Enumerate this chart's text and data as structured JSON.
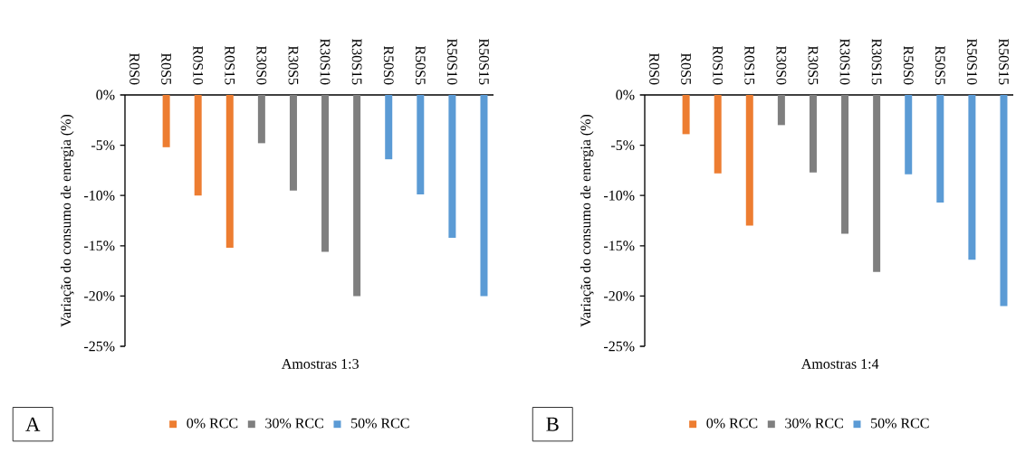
{
  "chart_data": [
    {
      "type": "bar",
      "categories": [
        "R0S0",
        "R0S5",
        "R0S10",
        "R0S15",
        "R30S0",
        "R30S5",
        "R30S10",
        "R30S15",
        "R50S0",
        "R50S5",
        "R50S10",
        "R50S15"
      ],
      "series": [
        {
          "name": "0% RCC",
          "color": "#ed7d31",
          "values": [
            0,
            -5.2,
            -10,
            -15.2,
            null,
            null,
            null,
            null,
            null,
            null,
            null,
            null
          ]
        },
        {
          "name": "30% RCC",
          "color": "#7f7f7f",
          "values": [
            null,
            null,
            null,
            null,
            -4.8,
            -9.5,
            -15.6,
            -20,
            null,
            null,
            null,
            null
          ]
        },
        {
          "name": "50% RCC",
          "color": "#5b9bd5",
          "values": [
            null,
            null,
            null,
            null,
            null,
            null,
            null,
            null,
            -6.4,
            -9.9,
            -14.2,
            -20
          ]
        }
      ],
      "ylim": [
        -25,
        0
      ],
      "yticks": [
        {
          "value": 0,
          "label": "0%"
        },
        {
          "value": -5,
          "label": "-5%"
        },
        {
          "value": -10,
          "label": "-10%"
        },
        {
          "value": -15,
          "label": "-15%"
        },
        {
          "value": -20,
          "label": "-20%"
        },
        {
          "value": -25,
          "label": "-25%"
        }
      ],
      "xlabel": "Amostras 1:3",
      "ylabel": "Variação do consumo de energia (%)",
      "legend": "bottom",
      "annotations": [
        "A"
      ]
    },
    {
      "type": "bar",
      "categories": [
        "R0S0",
        "R0S5",
        "R0S10",
        "R0S15",
        "R30S0",
        "R30S5",
        "R30S10",
        "R30S15",
        "R50S0",
        "R50S5",
        "R50S10",
        "R50S15"
      ],
      "series": [
        {
          "name": "0% RCC",
          "color": "#ed7d31",
          "values": [
            0,
            -3.9,
            -7.8,
            -13,
            null,
            null,
            null,
            null,
            null,
            null,
            null,
            null
          ]
        },
        {
          "name": "30% RCC",
          "color": "#7f7f7f",
          "values": [
            null,
            null,
            null,
            null,
            -3,
            -7.7,
            -13.8,
            -17.6,
            null,
            null,
            null,
            null
          ]
        },
        {
          "name": "50% RCC",
          "color": "#5b9bd5",
          "values": [
            null,
            null,
            null,
            null,
            null,
            null,
            null,
            null,
            -7.9,
            -10.7,
            -16.4,
            -21
          ]
        }
      ],
      "ylim": [
        -25,
        0
      ],
      "yticks": [
        {
          "value": 0,
          "label": "0%"
        },
        {
          "value": -5,
          "label": "-5%"
        },
        {
          "value": -10,
          "label": "-10%"
        },
        {
          "value": -15,
          "label": "-15%"
        },
        {
          "value": -20,
          "label": "-20%"
        },
        {
          "value": -25,
          "label": "-25%"
        }
      ],
      "xlabel": "Amostras 1:4",
      "ylabel": "Variação do consumo de energia (%)",
      "legend": "bottom",
      "annotations": [
        "B"
      ]
    }
  ]
}
